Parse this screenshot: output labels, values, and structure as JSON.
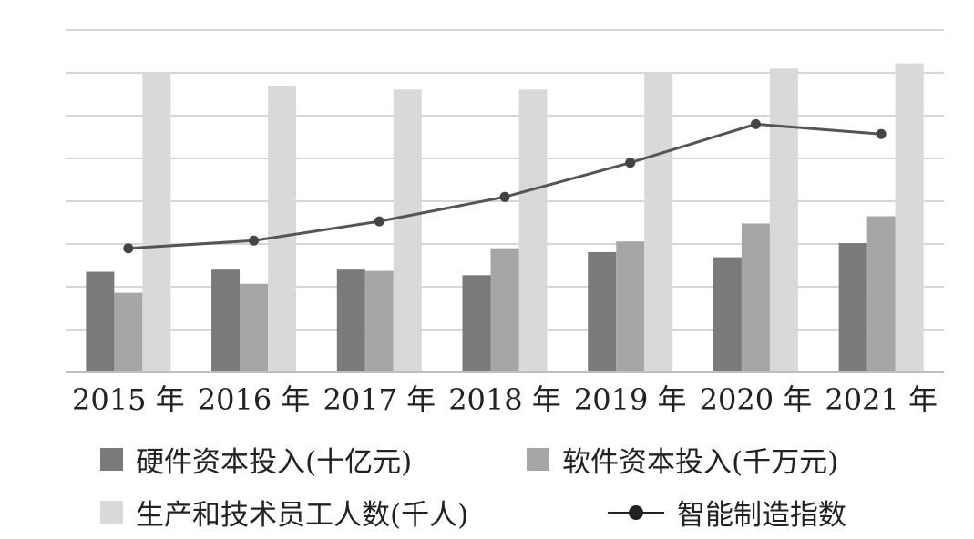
{
  "chart_data": {
    "type": "bar",
    "categories": [
      "2015 年",
      "2016 年",
      "2017 年",
      "2018 年",
      "2019 年",
      "2020 年",
      "2021 年"
    ],
    "ylim": [
      0,
      8
    ],
    "grid": true,
    "legend_position": "bottom",
    "series": [
      {
        "name": "硬件资本投入(十亿元)",
        "type": "bar",
        "color": "#7a7a7a",
        "values": [
          2.35,
          2.4,
          2.4,
          2.27,
          2.81,
          2.69,
          3.02
        ]
      },
      {
        "name": "软件资本投入(千万元)",
        "type": "bar",
        "color": "#a6a6a6",
        "values": [
          1.86,
          2.07,
          2.37,
          2.9,
          3.06,
          3.48,
          3.65
        ]
      },
      {
        "name": "生产和技术员工人数(千人)",
        "type": "bar",
        "color": "#d9d9d9",
        "values": [
          7.0,
          6.69,
          6.61,
          6.61,
          7.0,
          7.1,
          7.22
        ]
      },
      {
        "name": "智能制造指数",
        "type": "line",
        "color": "#555555",
        "marker_color": "#444444",
        "values": [
          2.9,
          3.08,
          3.53,
          4.1,
          4.9,
          5.8,
          5.57
        ]
      }
    ]
  }
}
